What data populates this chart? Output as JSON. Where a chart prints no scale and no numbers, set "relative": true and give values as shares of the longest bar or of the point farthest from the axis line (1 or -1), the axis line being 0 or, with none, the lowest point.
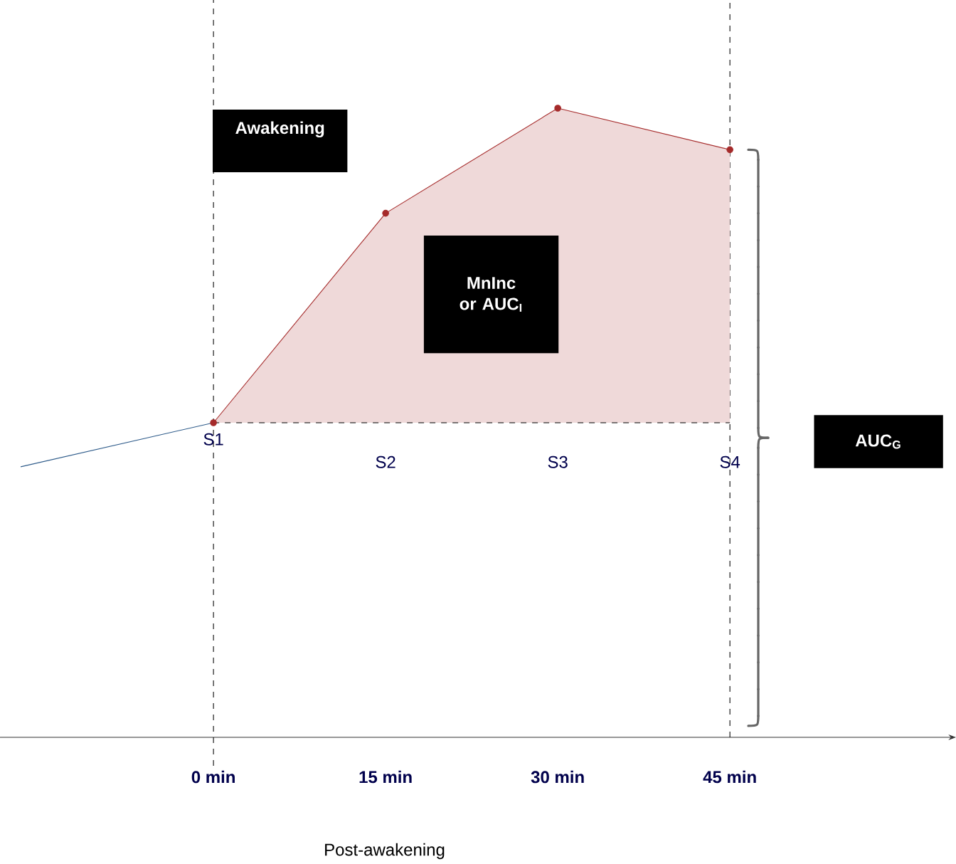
{
  "chart_data": {
    "type": "line",
    "relative": true,
    "xlabel": "Post-awakening",
    "xlim": [
      -18.6,
      64.7
    ],
    "xticks": [
      {
        "value": 0,
        "label": "0 min"
      },
      {
        "value": 15,
        "label": "15 min"
      },
      {
        "value": 30,
        "label": "30 min"
      },
      {
        "value": 45,
        "label": "45 min"
      }
    ],
    "tick_labels": "x",
    "series": [
      {
        "color": "#2e5b8a",
        "x": [
          -16.8,
          0
        ],
        "values": [
          0.43,
          0.5
        ],
        "marker": "none"
      },
      {
        "color": "#a52a2a",
        "x": [
          0,
          15,
          30,
          45
        ],
        "values": [
          0.5,
          0.833,
          1,
          0.934
        ],
        "marker": "circle",
        "lower": [
          0.5,
          0.5,
          0.5,
          0.5
        ],
        "upper": [
          0.5,
          0.833,
          1,
          0.934
        ]
      }
    ],
    "ref_lines": [
      {
        "axis": "x",
        "value": 0,
        "line_style": "dashed"
      },
      {
        "axis": "x",
        "value": 45,
        "line_style": "dashed"
      }
    ],
    "annotations": [
      "Awakening",
      "MnInc or AUC$_{I}$",
      "AUC$_{G}$",
      "S1",
      "S2",
      "S3",
      "S4"
    ]
  }
}
